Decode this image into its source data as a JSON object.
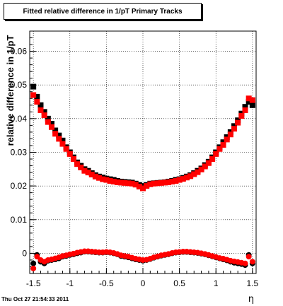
{
  "title": "Fitted relative difference in 1/pT  Primary Tracks",
  "footer": "Thu Oct 27 21:54:33 2011",
  "chart_data": {
    "type": "scatter",
    "xlabel": "η",
    "ylabel": "relative difference in 1/pT",
    "xlim": [
      -1.55,
      1.55
    ],
    "ylim": [
      -0.006,
      0.066
    ],
    "grid": true,
    "xticks": [
      {
        "v": -1.5,
        "label": "-1.5"
      },
      {
        "v": -1,
        "label": "-1"
      },
      {
        "v": -0.5,
        "label": "-0.5"
      },
      {
        "v": 0,
        "label": "0"
      },
      {
        "v": 0.5,
        "label": "0.5"
      },
      {
        "v": 1,
        "label": "1"
      },
      {
        "v": 1.5,
        "label": "1.5"
      }
    ],
    "yticks": [
      {
        "v": 0,
        "label": "0"
      },
      {
        "v": 0.01,
        "label": "0.01"
      },
      {
        "v": 0.02,
        "label": "0.02"
      },
      {
        "v": 0.03,
        "label": "0.03"
      },
      {
        "v": 0.04,
        "label": "0.04"
      },
      {
        "v": 0.05,
        "label": "0.05"
      },
      {
        "v": 0.06,
        "label": "0.06"
      }
    ],
    "series": [
      {
        "color": "#000000",
        "marker": "square",
        "x": [
          -1.5,
          -1.45,
          -1.4,
          -1.35,
          -1.3,
          -1.25,
          -1.2,
          -1.15,
          -1.1,
          -1.05,
          -1.0,
          -0.95,
          -0.9,
          -0.85,
          -0.8,
          -0.75,
          -0.7,
          -0.65,
          -0.6,
          -0.55,
          -0.5,
          -0.45,
          -0.4,
          -0.35,
          -0.3,
          -0.25,
          -0.2,
          -0.15,
          -0.1,
          -0.05,
          0.0,
          0.05,
          0.1,
          0.15,
          0.2,
          0.25,
          0.3,
          0.35,
          0.4,
          0.45,
          0.5,
          0.55,
          0.6,
          0.65,
          0.7,
          0.75,
          0.8,
          0.85,
          0.9,
          0.95,
          1.0,
          1.05,
          1.1,
          1.15,
          1.2,
          1.25,
          1.3,
          1.35,
          1.4,
          1.45,
          1.5
        ],
        "y": [
          0.0495,
          0.0465,
          0.044,
          0.042,
          0.04,
          0.0385,
          0.0365,
          0.035,
          0.0335,
          0.0315,
          0.03,
          0.0285,
          0.027,
          0.026,
          0.025,
          0.0245,
          0.0238,
          0.0232,
          0.0228,
          0.0225,
          0.0222,
          0.022,
          0.0218,
          0.0215,
          0.0213,
          0.0212,
          0.0211,
          0.021,
          0.0207,
          0.0203,
          0.02,
          0.0203,
          0.0207,
          0.0208,
          0.0209,
          0.021,
          0.0211,
          0.0213,
          0.0215,
          0.0218,
          0.022,
          0.0224,
          0.0228,
          0.0232,
          0.0238,
          0.0245,
          0.0252,
          0.0262,
          0.0272,
          0.0285,
          0.03,
          0.0315,
          0.033,
          0.0345,
          0.036,
          0.0378,
          0.0395,
          0.0415,
          0.0435,
          0.045,
          0.044
        ]
      },
      {
        "color": "#ff0000",
        "marker": "square",
        "x": [
          -1.5,
          -1.45,
          -1.4,
          -1.35,
          -1.3,
          -1.25,
          -1.2,
          -1.15,
          -1.1,
          -1.05,
          -1.0,
          -0.95,
          -0.9,
          -0.85,
          -0.8,
          -0.75,
          -0.7,
          -0.65,
          -0.6,
          -0.55,
          -0.5,
          -0.45,
          -0.4,
          -0.35,
          -0.3,
          -0.25,
          -0.2,
          -0.15,
          -0.1,
          -0.05,
          0.0,
          0.05,
          0.1,
          0.15,
          0.2,
          0.25,
          0.3,
          0.35,
          0.4,
          0.45,
          0.5,
          0.55,
          0.6,
          0.65,
          0.7,
          0.75,
          0.8,
          0.85,
          0.9,
          0.95,
          1.0,
          1.05,
          1.1,
          1.15,
          1.2,
          1.25,
          1.3,
          1.35,
          1.4,
          1.45,
          1.5
        ],
        "y": [
          0.047,
          0.045,
          0.0425,
          0.041,
          0.039,
          0.0375,
          0.0355,
          0.034,
          0.0325,
          0.031,
          0.0295,
          0.028,
          0.0265,
          0.0255,
          0.0245,
          0.024,
          0.0234,
          0.0228,
          0.0224,
          0.022,
          0.0218,
          0.0215,
          0.0213,
          0.0211,
          0.021,
          0.0209,
          0.0208,
          0.0207,
          0.0204,
          0.0198,
          0.0193,
          0.02,
          0.0205,
          0.0207,
          0.0208,
          0.0209,
          0.021,
          0.0211,
          0.0213,
          0.0215,
          0.0218,
          0.0221,
          0.0225,
          0.0229,
          0.0235,
          0.0241,
          0.0249,
          0.0258,
          0.0268,
          0.028,
          0.0295,
          0.031,
          0.0322,
          0.0338,
          0.0353,
          0.037,
          0.0388,
          0.0408,
          0.0425,
          0.046,
          0.0455
        ]
      },
      {
        "color": "#000000",
        "marker": "circle",
        "x": [
          -1.5,
          -1.45,
          -1.4,
          -1.35,
          -1.3,
          -1.25,
          -1.2,
          -1.15,
          -1.1,
          -1.05,
          -1.0,
          -0.95,
          -0.9,
          -0.85,
          -0.8,
          -0.75,
          -0.7,
          -0.65,
          -0.6,
          -0.55,
          -0.5,
          -0.45,
          -0.4,
          -0.35,
          -0.3,
          -0.25,
          -0.2,
          -0.15,
          -0.1,
          -0.05,
          0.0,
          0.05,
          0.1,
          0.15,
          0.2,
          0.25,
          0.3,
          0.35,
          0.4,
          0.45,
          0.5,
          0.55,
          0.6,
          0.65,
          0.7,
          0.75,
          0.8,
          0.85,
          0.9,
          0.95,
          1.0,
          1.05,
          1.1,
          1.15,
          1.2,
          1.25,
          1.3,
          1.35,
          1.4,
          1.45,
          1.5
        ],
        "y": [
          -0.003,
          -0.0005,
          -0.0025,
          -0.003,
          -0.0022,
          -0.002,
          -0.0018,
          -0.0015,
          -0.001,
          -0.0008,
          -0.0005,
          -0.0003,
          0.0,
          0.0002,
          0.0005,
          0.0005,
          0.0004,
          0.0003,
          0.0002,
          0.0002,
          0.0003,
          0.0002,
          0.0,
          -0.0003,
          -0.0008,
          -0.001,
          -0.0012,
          -0.0015,
          -0.0018,
          -0.002,
          -0.0022,
          -0.002,
          -0.0017,
          -0.0013,
          -0.001,
          -0.0007,
          -0.0005,
          -0.0003,
          0.0,
          0.0002,
          0.0003,
          0.0004,
          0.0004,
          0.0003,
          0.0002,
          0.0001,
          -0.0001,
          -0.0003,
          -0.0006,
          -0.0009,
          -0.0012,
          -0.0015,
          -0.0018,
          -0.0021,
          -0.0025,
          -0.0028,
          -0.003,
          -0.0032,
          -0.0035,
          -0.0005,
          -0.003
        ]
      },
      {
        "color": "#ff0000",
        "marker": "circle",
        "x": [
          -1.5,
          -1.45,
          -1.4,
          -1.35,
          -1.3,
          -1.25,
          -1.2,
          -1.15,
          -1.1,
          -1.05,
          -1.0,
          -0.95,
          -0.9,
          -0.85,
          -0.8,
          -0.75,
          -0.7,
          -0.65,
          -0.6,
          -0.55,
          -0.5,
          -0.45,
          -0.4,
          -0.35,
          -0.3,
          -0.25,
          -0.2,
          -0.15,
          -0.1,
          -0.05,
          0.0,
          0.05,
          0.1,
          0.15,
          0.2,
          0.25,
          0.3,
          0.35,
          0.4,
          0.45,
          0.5,
          0.55,
          0.6,
          0.65,
          0.7,
          0.75,
          0.8,
          0.85,
          0.9,
          0.95,
          1.0,
          1.05,
          1.1,
          1.15,
          1.2,
          1.25,
          1.3,
          1.35,
          1.4,
          1.45,
          1.5
        ],
        "y": [
          -0.0045,
          -0.001,
          -0.002,
          -0.0025,
          -0.002,
          -0.0018,
          -0.0015,
          -0.0012,
          -0.0008,
          -0.0006,
          -0.0003,
          -0.0001,
          0.0002,
          0.0004,
          0.0006,
          0.0006,
          0.0005,
          0.0004,
          0.0003,
          0.0003,
          0.0004,
          0.0003,
          0.0001,
          -0.0002,
          -0.0006,
          -0.0008,
          -0.001,
          -0.0013,
          -0.0016,
          -0.0018,
          -0.002,
          -0.0019,
          -0.0016,
          -0.0012,
          -0.0009,
          -0.0006,
          -0.0004,
          -0.0002,
          0.0001,
          0.0003,
          0.0004,
          0.0005,
          0.0005,
          0.0004,
          0.0003,
          0.0002,
          0.0,
          -0.0002,
          -0.0005,
          -0.0008,
          -0.0011,
          -0.0014,
          -0.0016,
          -0.0019,
          -0.0022,
          -0.0024,
          -0.0026,
          -0.0028,
          -0.003,
          -0.001,
          -0.0025
        ]
      }
    ]
  }
}
